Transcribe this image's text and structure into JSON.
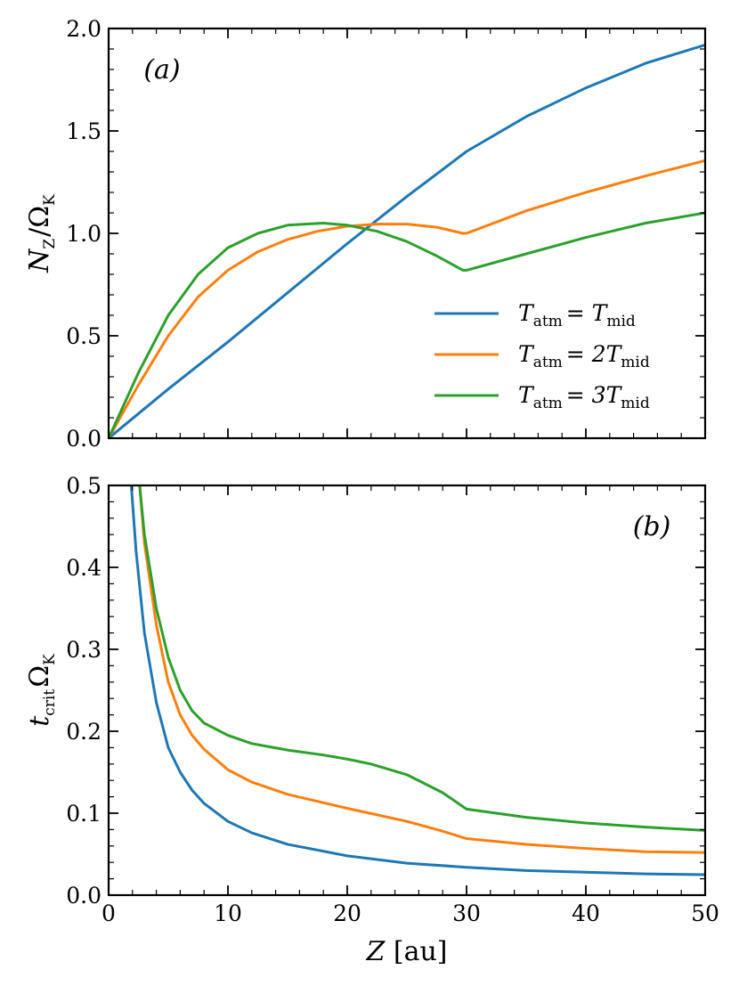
{
  "chart_data": [
    {
      "panel": "a",
      "type": "line",
      "panel_label": "(a)",
      "ylabel": "N_Z/Ω_K",
      "ylabel_parts": {
        "base": "N",
        "sub": "Z",
        "sep": "/Ω",
        "sub2": "K"
      },
      "xlim": [
        0,
        50
      ],
      "ylim": [
        0,
        2.0
      ],
      "yticks": [
        0.0,
        0.5,
        1.0,
        1.5,
        2.0
      ],
      "ytick_labels": [
        "0.0",
        "0.5",
        "1.0",
        "1.5",
        "2.0"
      ],
      "legend_position": "lower-right",
      "series": [
        {
          "name": "T_atm = T_mid",
          "legend": {
            "lhs": "T",
            "lhs_sub": "atm",
            "rhs": "= T",
            "rhs_sub": "mid"
          },
          "color": "#1f77b4",
          "x": [
            0,
            5,
            10,
            15,
            20,
            25,
            30,
            35,
            40,
            45,
            50
          ],
          "y": [
            0,
            0.24,
            0.47,
            0.71,
            0.95,
            1.18,
            1.4,
            1.57,
            1.71,
            1.83,
            1.92
          ]
        },
        {
          "name": "T_atm = 2T_mid",
          "legend": {
            "lhs": "T",
            "lhs_sub": "atm",
            "rhs": "= 2T",
            "rhs_sub": "mid"
          },
          "color": "#ff7f0e",
          "x": [
            0,
            2.5,
            5,
            7.5,
            10,
            12.5,
            15,
            17.5,
            20,
            22.5,
            25,
            27.5,
            29.7,
            30,
            35,
            40,
            45,
            50
          ],
          "y": [
            0,
            0.26,
            0.5,
            0.69,
            0.82,
            0.91,
            0.97,
            1.01,
            1.035,
            1.045,
            1.045,
            1.03,
            1.0,
            1.0,
            1.11,
            1.2,
            1.28,
            1.355
          ]
        },
        {
          "name": "T_atm = 3T_mid",
          "legend": {
            "lhs": "T",
            "lhs_sub": "atm",
            "rhs": "= 3T",
            "rhs_sub": "mid"
          },
          "color": "#2ca02c",
          "x": [
            0,
            2.5,
            5,
            7.5,
            10,
            12.5,
            15,
            18,
            20,
            22.5,
            25,
            27.5,
            29.7,
            30,
            35,
            40,
            45,
            50
          ],
          "y": [
            0,
            0.32,
            0.6,
            0.8,
            0.93,
            1.0,
            1.04,
            1.05,
            1.04,
            1.01,
            0.96,
            0.89,
            0.82,
            0.82,
            0.9,
            0.98,
            1.05,
            1.1
          ]
        }
      ]
    },
    {
      "panel": "b",
      "type": "line",
      "panel_label": "(b)",
      "ylabel": "t_crit Ω_K",
      "ylabel_parts": {
        "base": "t",
        "sub": "crit",
        "sep": "Ω",
        "sub2": "K"
      },
      "xlabel": "Z [au]",
      "xlabel_parts": {
        "var": "Z",
        "unit": " [au]"
      },
      "xlim": [
        0,
        50
      ],
      "ylim": [
        0,
        0.5
      ],
      "xticks": [
        0,
        10,
        20,
        30,
        40,
        50
      ],
      "xtick_labels": [
        "0",
        "10",
        "20",
        "30",
        "40",
        "50"
      ],
      "yticks": [
        0.0,
        0.1,
        0.2,
        0.3,
        0.4,
        0.5
      ],
      "ytick_labels": [
        "0.0",
        "0.1",
        "0.2",
        "0.3",
        "0.4",
        "0.5"
      ],
      "series": [
        {
          "name": "T_atm = T_mid",
          "color": "#1f77b4",
          "x": [
            1.9,
            2.3,
            3,
            4,
            5,
            6,
            7,
            8,
            10,
            12,
            15,
            20,
            25,
            30,
            35,
            40,
            45,
            50
          ],
          "y": [
            0.5,
            0.42,
            0.32,
            0.235,
            0.18,
            0.15,
            0.128,
            0.112,
            0.09,
            0.076,
            0.062,
            0.048,
            0.039,
            0.034,
            0.03,
            0.028,
            0.026,
            0.025
          ]
        },
        {
          "name": "T_atm = 2T_mid",
          "color": "#ff7f0e",
          "x": [
            2.6,
            3,
            4,
            5,
            6,
            7,
            8,
            10,
            12,
            15,
            20,
            25,
            28,
            30,
            35,
            40,
            45,
            50
          ],
          "y": [
            0.5,
            0.43,
            0.33,
            0.26,
            0.22,
            0.195,
            0.178,
            0.153,
            0.138,
            0.123,
            0.106,
            0.09,
            0.078,
            0.069,
            0.062,
            0.057,
            0.053,
            0.052
          ]
        },
        {
          "name": "T_atm = 3T_mid",
          "color": "#2ca02c",
          "x": [
            2.6,
            3,
            4,
            5,
            6,
            7,
            8,
            10,
            12,
            15,
            18,
            20,
            22,
            25,
            28,
            30,
            35,
            40,
            45,
            50
          ],
          "y": [
            0.5,
            0.44,
            0.35,
            0.29,
            0.25,
            0.225,
            0.21,
            0.195,
            0.185,
            0.177,
            0.171,
            0.166,
            0.16,
            0.147,
            0.125,
            0.105,
            0.095,
            0.088,
            0.083,
            0.079
          ]
        }
      ]
    }
  ]
}
